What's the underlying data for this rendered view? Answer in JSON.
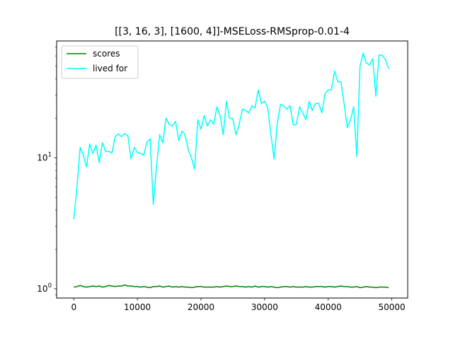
{
  "chart_data": {
    "type": "line",
    "title": "[[3, 16, 3], [1600, 4]]-MSELoss-RMSprop-0.01-4",
    "xlabel": "",
    "ylabel": "",
    "xlim": [
      -2700,
      52500
    ],
    "ylim": [
      0.85,
      78
    ],
    "yscale": "log",
    "grid": false,
    "legend_position": "top-left",
    "x_ticks": [
      0,
      10000,
      20000,
      30000,
      40000,
      50000
    ],
    "x_tick_labels": [
      "0",
      "10000",
      "20000",
      "30000",
      "40000",
      "50000"
    ],
    "y_ticks": [
      1,
      10
    ],
    "y_tick_labels": [
      "10^0",
      "10^1"
    ],
    "x": [
      0,
      500,
      1000,
      1500,
      2000,
      2500,
      3000,
      3500,
      4000,
      4500,
      5000,
      5500,
      6000,
      6500,
      7000,
      7500,
      8000,
      8500,
      9000,
      9500,
      10000,
      10500,
      11000,
      11500,
      12000,
      12500,
      13000,
      13500,
      14000,
      14500,
      15000,
      15500,
      16000,
      16500,
      17000,
      17500,
      18000,
      18500,
      19000,
      19500,
      20000,
      20500,
      21000,
      21500,
      22000,
      22500,
      23000,
      23500,
      24000,
      24500,
      25000,
      25500,
      26000,
      26500,
      27000,
      27500,
      28000,
      28500,
      29000,
      29500,
      30000,
      30500,
      31000,
      31500,
      32000,
      32500,
      33000,
      33500,
      34000,
      34500,
      35000,
      35500,
      36000,
      36500,
      37000,
      37500,
      38000,
      38500,
      39000,
      39500,
      40000,
      40500,
      41000,
      41500,
      42000,
      42500,
      43000,
      43500,
      44000,
      44500,
      45000,
      45500,
      46000,
      46500,
      47000,
      47500,
      48000,
      48500,
      49000,
      49500
    ],
    "series": [
      {
        "name": "scores",
        "color": "#008000",
        "values": [
          1.03,
          1.04,
          1.06,
          1.04,
          1.03,
          1.04,
          1.05,
          1.04,
          1.05,
          1.03,
          1.04,
          1.06,
          1.05,
          1.04,
          1.05,
          1.05,
          1.07,
          1.05,
          1.05,
          1.04,
          1.04,
          1.03,
          1.04,
          1.03,
          1.02,
          1.04,
          1.04,
          1.05,
          1.03,
          1.04,
          1.05,
          1.03,
          1.04,
          1.03,
          1.04,
          1.03,
          1.03,
          1.02,
          1.03,
          1.04,
          1.04,
          1.03,
          1.03,
          1.03,
          1.03,
          1.04,
          1.03,
          1.04,
          1.05,
          1.04,
          1.04,
          1.05,
          1.04,
          1.04,
          1.03,
          1.04,
          1.03,
          1.05,
          1.03,
          1.04,
          1.04,
          1.03,
          1.04,
          1.03,
          1.02,
          1.03,
          1.04,
          1.04,
          1.03,
          1.04,
          1.03,
          1.03,
          1.03,
          1.04,
          1.03,
          1.03,
          1.04,
          1.04,
          1.04,
          1.03,
          1.04,
          1.04,
          1.03,
          1.04,
          1.05,
          1.04,
          1.04,
          1.03,
          1.03,
          1.04,
          1.02,
          1.03,
          1.04,
          1.03,
          1.03,
          1.02,
          1.03,
          1.03,
          1.03,
          1.02
        ]
      },
      {
        "name": "lived for",
        "color": "#00ffff",
        "values": [
          3.4,
          6.0,
          12.0,
          10.5,
          8.5,
          12.8,
          10.8,
          12.5,
          9.2,
          13.0,
          11.2,
          11.2,
          10.9,
          14.5,
          15.2,
          14.5,
          15.3,
          14.8,
          9.8,
          12.0,
          11.0,
          10.8,
          10.5,
          13.2,
          14.0,
          4.4,
          8.5,
          15.0,
          13.0,
          20.0,
          18.0,
          17.5,
          19.0,
          13.5,
          16.0,
          15.0,
          11.5,
          10.0,
          8.2,
          19.5,
          16.5,
          21.0,
          17.5,
          19.5,
          18.0,
          24.5,
          21.0,
          15.0,
          27.0,
          20.0,
          20.0,
          15.0,
          18.0,
          23.5,
          23.0,
          22.0,
          25.0,
          24.0,
          33.0,
          26.0,
          27.0,
          24.0,
          15.0,
          9.8,
          18.5,
          25.5,
          25.0,
          23.5,
          25.0,
          17.8,
          18.0,
          24.5,
          22.0,
          19.5,
          27.0,
          23.0,
          26.0,
          26.0,
          22.0,
          31.0,
          33.0,
          33.0,
          46.0,
          38.0,
          38.0,
          26.0,
          17.0,
          19.5,
          24.5,
          10.2,
          50.0,
          63.0,
          53.0,
          51.0,
          57.0,
          29.5,
          61.0,
          60.5,
          56.0,
          48.0
        ]
      }
    ]
  }
}
